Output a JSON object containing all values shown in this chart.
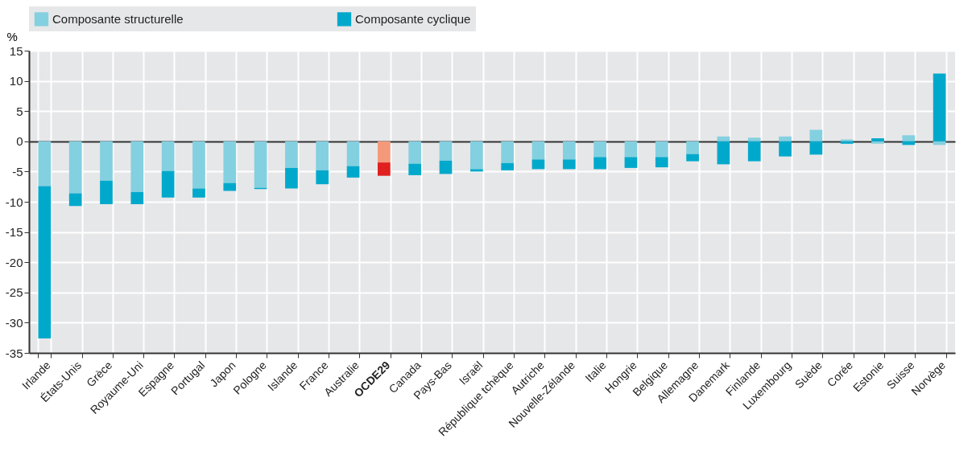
{
  "chart_data": {
    "type": "bar",
    "stacked": true,
    "ylabel": "%",
    "legend": "top",
    "grid": true,
    "categories": [
      "Irlande",
      "États-Unis",
      "Grèce",
      "Royaume-Uni",
      "Espagne",
      "Portugal",
      "Japon",
      "Pologne",
      "Islande",
      "France",
      "Australie",
      "OCDE29",
      "Canada",
      "Pays-Bas",
      "Israël",
      "République tchèque",
      "Autriche",
      "Nouvelle-Zélande",
      "Italie",
      "Hongrie",
      "Belgique",
      "Allemagne",
      "Danemark",
      "Finlande",
      "Luxembourg",
      "Suède",
      "Corée",
      "Estonie",
      "Suisse",
      "Norvège"
    ],
    "ylim": [
      -35,
      15
    ],
    "yticks": [
      -35,
      -30,
      -25,
      -20,
      -15,
      -10,
      -5,
      0,
      5,
      10,
      15
    ],
    "series": [
      {
        "name": "Composante structurelle",
        "color": "#83d0e0",
        "colors": [
          "#83d0e0",
          "#83d0e0",
          "#83d0e0",
          "#83d0e0",
          "#83d0e0",
          "#83d0e0",
          "#83d0e0",
          "#83d0e0",
          "#83d0e0",
          "#83d0e0",
          "#83d0e0",
          "#f4997a",
          "#83d0e0",
          "#83d0e0",
          "#83d0e0",
          "#83d0e0",
          "#83d0e0",
          "#83d0e0",
          "#83d0e0",
          "#83d0e0",
          "#83d0e0",
          "#83d0e0",
          "#83d0e0",
          "#83d0e0",
          "#83d0e0",
          "#83d0e0",
          "#83d0e0",
          "#83d0e0",
          "#83d0e0",
          "#83d0e0"
        ],
        "values": [
          -7.4,
          -8.6,
          -6.5,
          -8.4,
          -4.9,
          -7.8,
          -6.9,
          -7.7,
          -4.4,
          -4.8,
          -4.1,
          -3.5,
          -3.7,
          -3.2,
          -4.6,
          -3.6,
          -3.0,
          -3.0,
          -2.6,
          -2.6,
          -2.6,
          -2.1,
          0.8,
          0.6,
          0.8,
          1.9,
          0.3,
          -0.4,
          1.0,
          -0.6
        ]
      },
      {
        "name": "Composante cyclique",
        "color": "#00a9cc",
        "colors": [
          "#00a9cc",
          "#00a9cc",
          "#00a9cc",
          "#00a9cc",
          "#00a9cc",
          "#00a9cc",
          "#00a9cc",
          "#00a9cc",
          "#00a9cc",
          "#00a9cc",
          "#00a9cc",
          "#e0201f",
          "#00a9cc",
          "#00a9cc",
          "#00a9cc",
          "#00a9cc",
          "#00a9cc",
          "#00a9cc",
          "#00a9cc",
          "#00a9cc",
          "#00a9cc",
          "#00a9cc",
          "#00a9cc",
          "#00a9cc",
          "#00a9cc",
          "#00a9cc",
          "#00a9cc",
          "#00a9cc",
          "#00a9cc",
          "#00a9cc"
        ],
        "values": [
          -25.2,
          -2.1,
          -3.9,
          -2.0,
          -4.4,
          -1.5,
          -1.3,
          -0.2,
          -3.4,
          -2.3,
          -1.9,
          -2.2,
          -1.9,
          -2.2,
          -0.4,
          -1.2,
          -1.6,
          -1.6,
          -2.0,
          -1.8,
          -1.7,
          -1.2,
          -3.8,
          -3.3,
          -2.5,
          -2.2,
          -0.4,
          0.5,
          -0.6,
          11.2
        ]
      }
    ]
  }
}
